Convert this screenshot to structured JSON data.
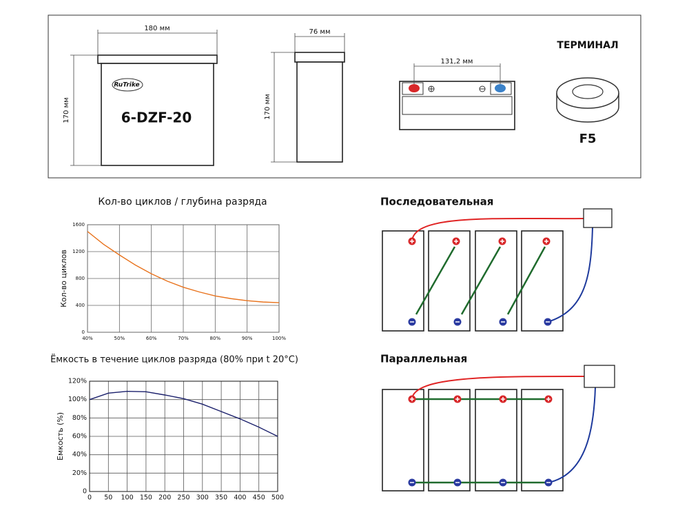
{
  "spec": {
    "brand": "RuTrike",
    "model": "6-DZF-20",
    "width": "180 мм",
    "height": "170 мм",
    "depth": "76 мм",
    "side_height": "170 мм",
    "terminal_spacing": "131,2 мм",
    "terminal_title": "ТЕРМИНАЛ",
    "terminal_type": "F5"
  },
  "wiring": {
    "series": "Последовательная",
    "parallel": "Параллельная"
  },
  "chart_data": [
    {
      "type": "line",
      "title": "Кол-во циклов / глубина разряда",
      "y_label": "Кол-во циклов",
      "x": [
        40,
        45,
        50,
        55,
        60,
        65,
        70,
        75,
        80,
        85,
        90,
        95,
        100
      ],
      "series": [
        {
          "color": "#e8721c",
          "values": [
            1500,
            1310,
            1150,
            1000,
            870,
            760,
            670,
            600,
            540,
            500,
            470,
            450,
            440
          ]
        }
      ],
      "xlim": [
        40,
        100
      ],
      "ylim": [
        0,
        1600
      ],
      "xticks": [
        {
          "value": 40,
          "label": "40%"
        },
        {
          "value": 50,
          "label": "50%"
        },
        {
          "value": 60,
          "label": "60%"
        },
        {
          "value": 70,
          "label": "70%"
        },
        {
          "value": 80,
          "label": "80%"
        },
        {
          "value": 90,
          "label": "90%"
        },
        {
          "value": 100,
          "label": "100%"
        }
      ],
      "yticks": [
        0,
        400,
        800,
        1200,
        1600
      ],
      "grid": true
    },
    {
      "type": "line",
      "title": "Ёмкость в течение циклов разряда (80% при t 20°C)",
      "y_label": "Емкость (%)",
      "x": [
        0,
        50,
        100,
        150,
        200,
        250,
        300,
        350,
        400,
        450,
        500
      ],
      "series": [
        {
          "color": "#1a1f6b",
          "values": [
            100,
            107,
            109,
            108.5,
            105,
            101,
            95,
            87,
            79,
            70,
            60
          ]
        }
      ],
      "xlim": [
        0,
        500
      ],
      "ylim": [
        0,
        120
      ],
      "xticks": [
        0,
        50,
        100,
        150,
        200,
        250,
        300,
        350,
        400,
        450,
        500
      ],
      "yticks": [
        0,
        {
          "value": 20,
          "label": "20%"
        },
        {
          "value": 40,
          "label": "40%"
        },
        {
          "value": 60,
          "label": "60%"
        },
        {
          "value": 80,
          "label": "80%"
        },
        {
          "value": 100,
          "label": "100%"
        },
        {
          "value": 120,
          "label": "120%"
        }
      ],
      "grid": true
    }
  ]
}
